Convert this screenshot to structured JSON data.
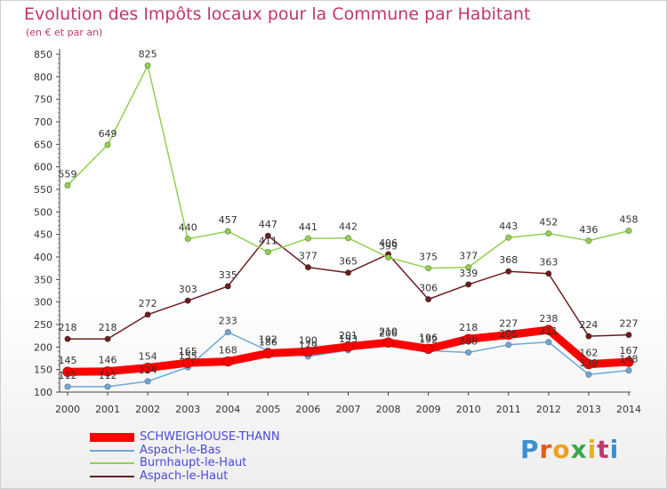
{
  "title": "Evolution des Impôts locaux pour la Commune par Habitant",
  "subtitle": "(en € et par an)",
  "logo": {
    "text": "Proxiti",
    "colors": [
      "#3a8fd0",
      "#e85a1e",
      "#f0a020",
      "#3aa84a",
      "#e8b020",
      "#c03a6e",
      "#3a8fd0"
    ]
  },
  "chart_data": {
    "type": "line",
    "x": [
      2000,
      2001,
      2002,
      2003,
      2004,
      2005,
      2006,
      2007,
      2008,
      2009,
      2010,
      2011,
      2012,
      2013,
      2014
    ],
    "ylim": [
      100,
      850
    ],
    "yticks": [
      100,
      150,
      200,
      250,
      300,
      350,
      400,
      450,
      500,
      550,
      600,
      650,
      700,
      750,
      800,
      850
    ],
    "grid": false,
    "series": [
      {
        "name": "SCHWEIGHOUSE-THANN",
        "color": "#ff0000",
        "values": [
          145,
          146,
          154,
          165,
          168,
          186,
          190,
          201,
          210,
          196,
          218,
          227,
          238,
          162,
          167
        ]
      },
      {
        "name": "Aspach-le-Bas",
        "color": "#6fa8d8",
        "values": [
          112,
          112,
          124,
          155,
          233,
          192,
          179,
          193,
          206,
          192,
          188,
          205,
          211,
          139,
          148
        ]
      },
      {
        "name": "Burnhaupt-le-Haut",
        "color": "#90d050",
        "values": [
          559,
          649,
          825,
          440,
          457,
          411,
          441,
          442,
          399,
          375,
          377,
          443,
          452,
          436,
          458
        ]
      },
      {
        "name": "Aspach-le-Haut",
        "color": "#6b1e1e",
        "values": [
          218,
          218,
          272,
          303,
          335,
          447,
          377,
          365,
          406,
          306,
          339,
          368,
          363,
          224,
          227
        ]
      }
    ]
  }
}
